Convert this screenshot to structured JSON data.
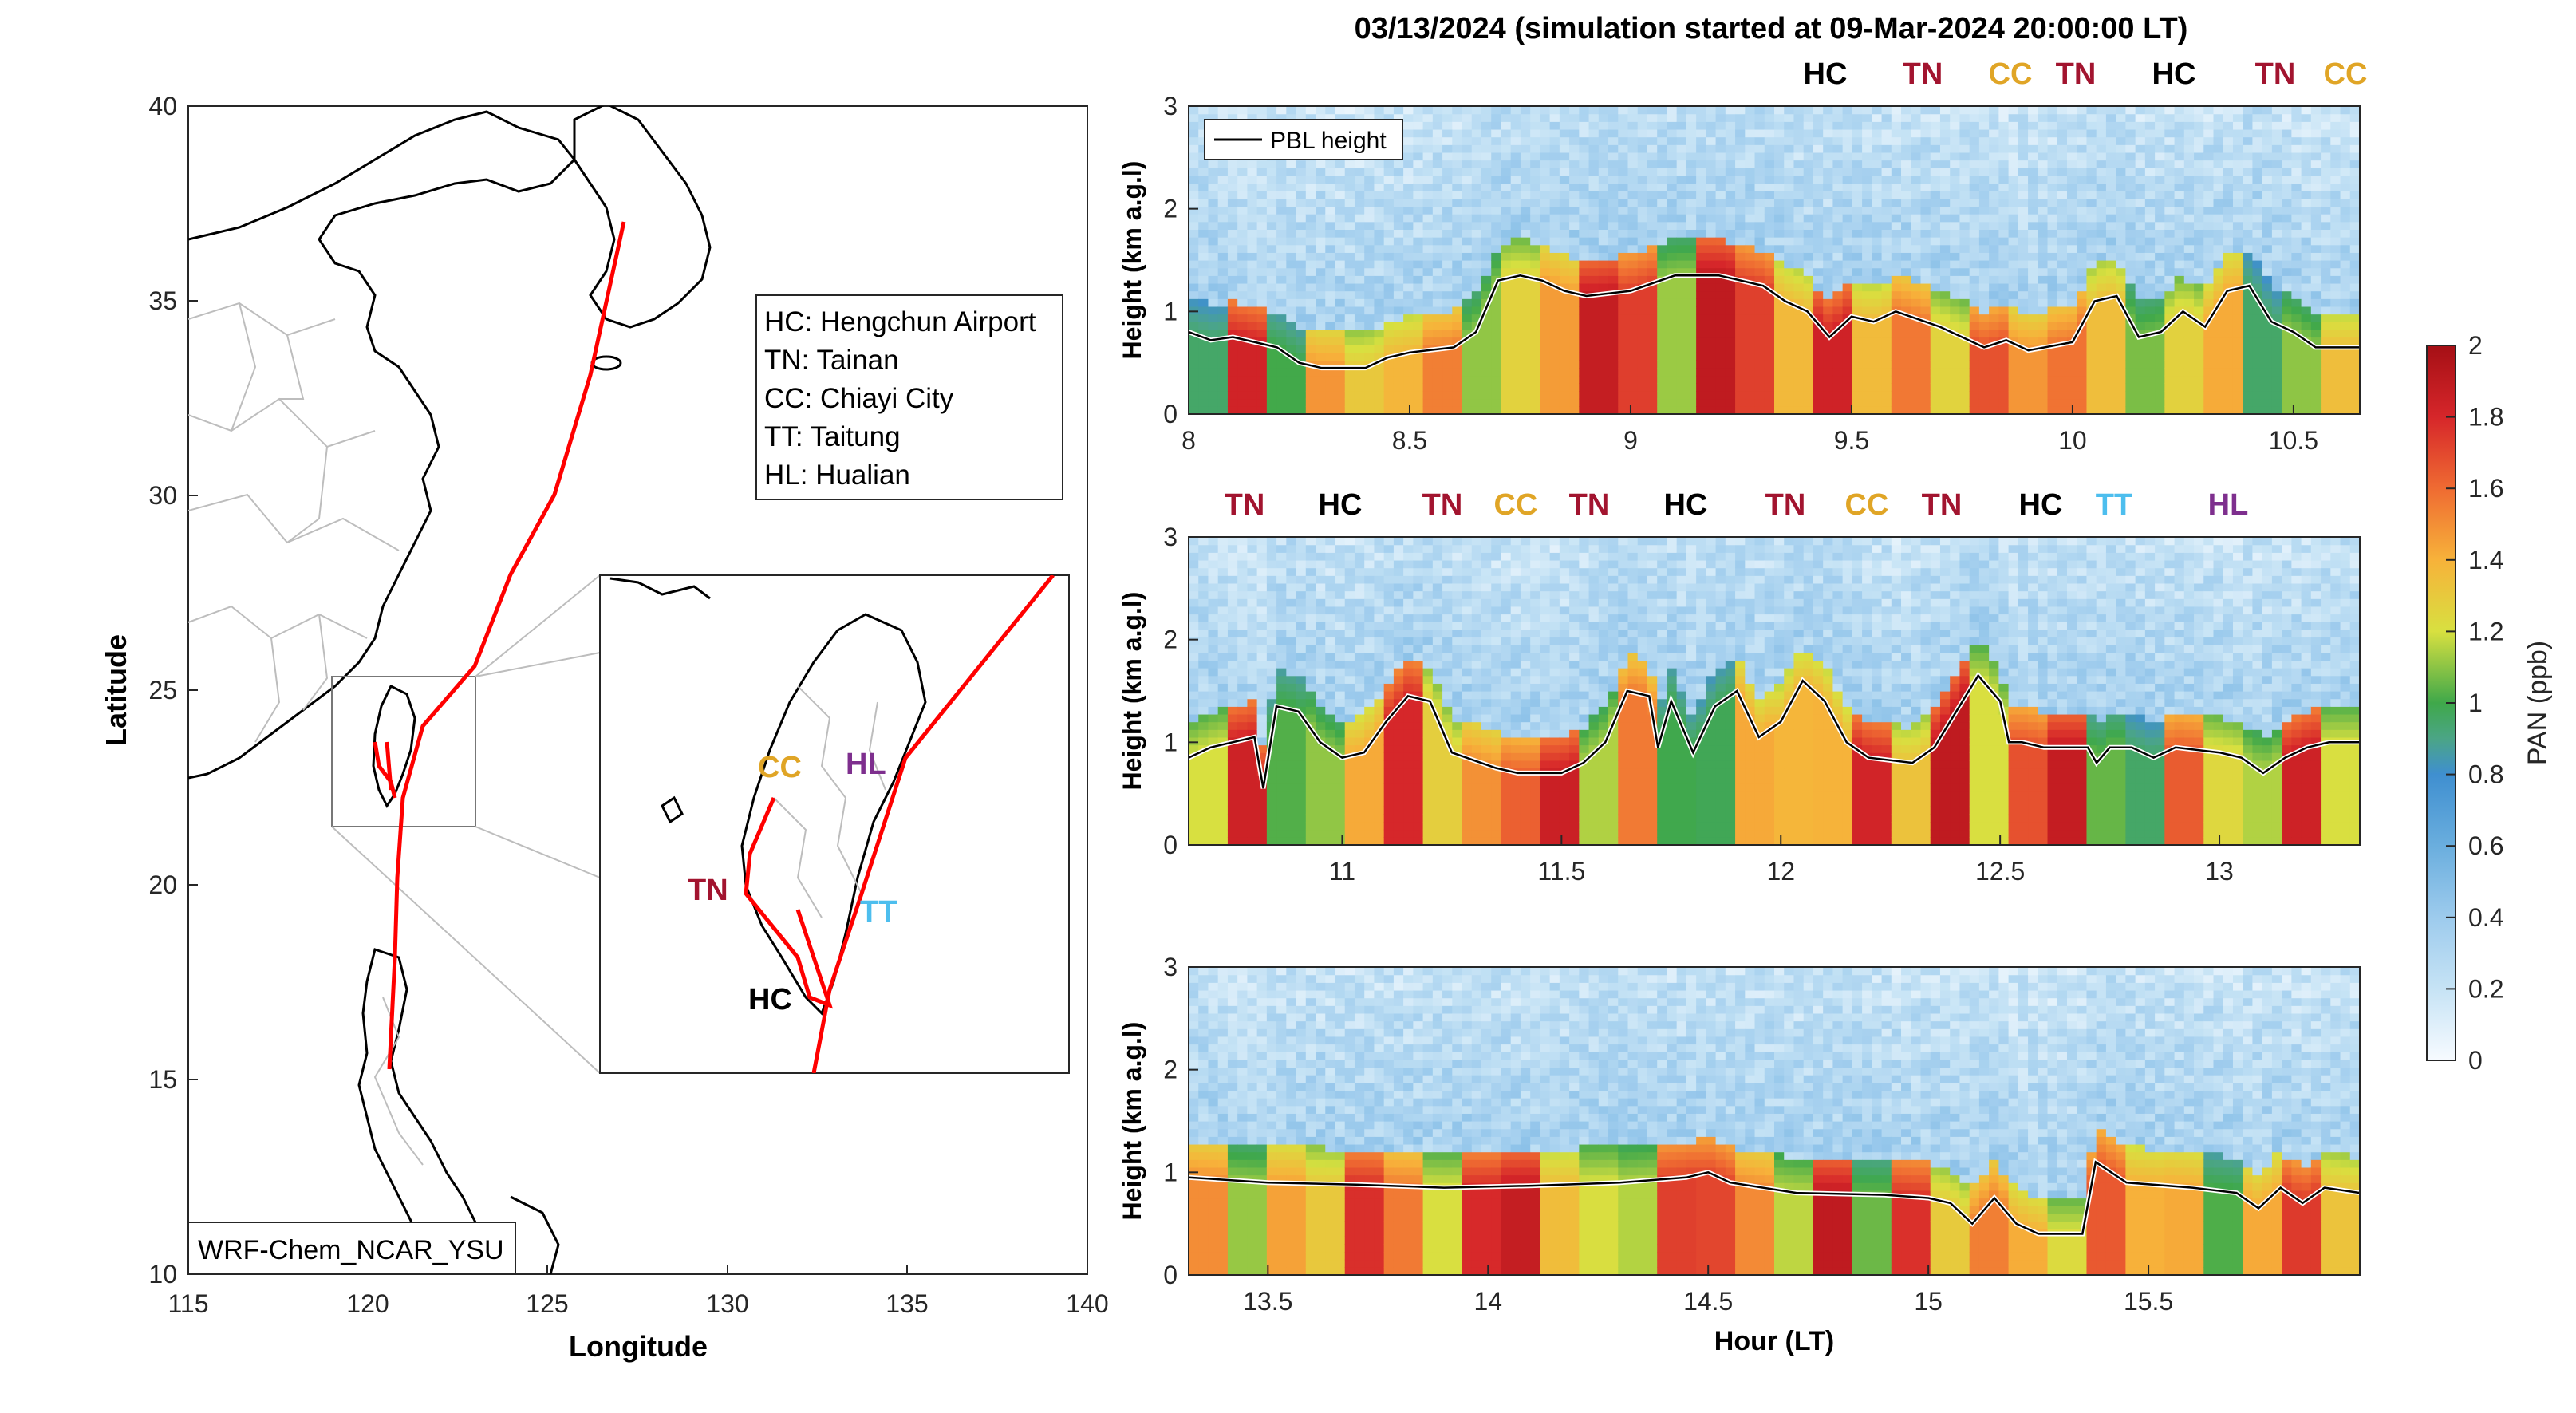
{
  "title": "03/13/2024 (simulation started at 09-Mar-2024 20:00:00 LT)",
  "map": {
    "xlabel": "Longitude",
    "ylabel": "Latitude",
    "xticks": [
      "115",
      "120",
      "125",
      "130",
      "135",
      "140"
    ],
    "yticks": [
      "10",
      "15",
      "20",
      "25",
      "30",
      "35",
      "40"
    ],
    "model_label": "WRF-Chem_NCAR_YSU",
    "legend": [
      "HC: Hengchun Airport",
      "TN: Tainan",
      "CC: Chiayi City",
      "TT: Taitung",
      "HL: Hualian"
    ],
    "inset_labels": [
      {
        "text": "CC",
        "color": "#e0a526"
      },
      {
        "text": "HL",
        "color": "#7e2f8e"
      },
      {
        "text": "TN",
        "color": "#a2142f"
      },
      {
        "text": "TT",
        "color": "#4dbeee"
      },
      {
        "text": "HC",
        "color": "#000000"
      }
    ],
    "track_color": "#ff0000"
  },
  "chart_data": {
    "type": "heatmap",
    "variable": "PAN (ppb)",
    "colorbar": {
      "label": "PAN (ppb)",
      "range": [
        0,
        2
      ],
      "ticks": [
        "0",
        "0.2",
        "0.4",
        "0.6",
        "0.8",
        "1",
        "1.2",
        "1.4",
        "1.6",
        "1.8",
        "2"
      ]
    },
    "xlabel": "Hour (LT)",
    "ylabel": "Height (km a.g.l)",
    "line_legend": "PBL height",
    "panels": [
      {
        "xlim": [
          8,
          10.65
        ],
        "ylim": [
          0,
          3
        ],
        "xticks": [
          "8",
          "8.5",
          "9",
          "9.5",
          "10",
          "10.5"
        ],
        "yticks": [
          "0",
          "1",
          "2",
          "3"
        ],
        "sites": [
          {
            "text": "HC",
            "color": "#000000"
          },
          {
            "text": "TN",
            "color": "#a2142f"
          },
          {
            "text": "CC",
            "color": "#e0a526"
          },
          {
            "text": "TN",
            "color": "#a2142f"
          },
          {
            "text": "HC",
            "color": "#000000"
          },
          {
            "text": "TN",
            "color": "#a2142f"
          },
          {
            "text": "CC",
            "color": "#e0a526"
          }
        ],
        "pbl_height": [
          [
            8.0,
            0.8
          ],
          [
            8.05,
            0.72
          ],
          [
            8.1,
            0.75
          ],
          [
            8.15,
            0.7
          ],
          [
            8.2,
            0.65
          ],
          [
            8.25,
            0.5
          ],
          [
            8.3,
            0.45
          ],
          [
            8.4,
            0.45
          ],
          [
            8.45,
            0.55
          ],
          [
            8.5,
            0.6
          ],
          [
            8.6,
            0.65
          ],
          [
            8.65,
            0.8
          ],
          [
            8.7,
            1.3
          ],
          [
            8.75,
            1.35
          ],
          [
            8.8,
            1.3
          ],
          [
            8.85,
            1.2
          ],
          [
            8.9,
            1.15
          ],
          [
            9.0,
            1.2
          ],
          [
            9.1,
            1.35
          ],
          [
            9.2,
            1.35
          ],
          [
            9.3,
            1.25
          ],
          [
            9.35,
            1.1
          ],
          [
            9.4,
            1.0
          ],
          [
            9.45,
            0.75
          ],
          [
            9.5,
            0.95
          ],
          [
            9.55,
            0.9
          ],
          [
            9.6,
            1.0
          ],
          [
            9.7,
            0.85
          ],
          [
            9.8,
            0.65
          ],
          [
            9.85,
            0.72
          ],
          [
            9.9,
            0.62
          ],
          [
            10.0,
            0.7
          ],
          [
            10.05,
            1.1
          ],
          [
            10.1,
            1.15
          ],
          [
            10.15,
            0.75
          ],
          [
            10.2,
            0.8
          ],
          [
            10.25,
            1.0
          ],
          [
            10.3,
            0.85
          ],
          [
            10.35,
            1.2
          ],
          [
            10.4,
            1.25
          ],
          [
            10.45,
            0.9
          ],
          [
            10.5,
            0.8
          ],
          [
            10.55,
            0.65
          ],
          [
            10.65,
            0.65
          ]
        ]
      },
      {
        "xlim": [
          10.65,
          13.32
        ],
        "ylim": [
          0,
          3
        ],
        "xticks": [
          "11",
          "11.5",
          "12",
          "12.5",
          "13"
        ],
        "yticks": [
          "0",
          "1",
          "2",
          "3"
        ],
        "sites": [
          {
            "text": "TN",
            "color": "#a2142f"
          },
          {
            "text": "HC",
            "color": "#000000"
          },
          {
            "text": "TN",
            "color": "#a2142f"
          },
          {
            "text": "CC",
            "color": "#e0a526"
          },
          {
            "text": "TN",
            "color": "#a2142f"
          },
          {
            "text": "HC",
            "color": "#000000"
          },
          {
            "text": "TN",
            "color": "#a2142f"
          },
          {
            "text": "CC",
            "color": "#e0a526"
          },
          {
            "text": "TN",
            "color": "#a2142f"
          },
          {
            "text": "HC",
            "color": "#000000"
          },
          {
            "text": "TT",
            "color": "#4dbeee"
          },
          {
            "text": "HL",
            "color": "#7e2f8e"
          }
        ],
        "pbl_height": [
          [
            10.65,
            0.85
          ],
          [
            10.7,
            0.95
          ],
          [
            10.75,
            1.0
          ],
          [
            10.8,
            1.05
          ],
          [
            10.82,
            0.55
          ],
          [
            10.85,
            1.35
          ],
          [
            10.9,
            1.3
          ],
          [
            10.95,
            1.0
          ],
          [
            11.0,
            0.85
          ],
          [
            11.05,
            0.9
          ],
          [
            11.1,
            1.2
          ],
          [
            11.15,
            1.45
          ],
          [
            11.2,
            1.4
          ],
          [
            11.25,
            0.9
          ],
          [
            11.35,
            0.75
          ],
          [
            11.4,
            0.7
          ],
          [
            11.5,
            0.7
          ],
          [
            11.55,
            0.8
          ],
          [
            11.6,
            1.0
          ],
          [
            11.65,
            1.5
          ],
          [
            11.7,
            1.45
          ],
          [
            11.72,
            0.95
          ],
          [
            11.75,
            1.4
          ],
          [
            11.8,
            0.9
          ],
          [
            11.85,
            1.35
          ],
          [
            11.9,
            1.5
          ],
          [
            11.95,
            1.05
          ],
          [
            12.0,
            1.2
          ],
          [
            12.05,
            1.6
          ],
          [
            12.1,
            1.4
          ],
          [
            12.15,
            1.0
          ],
          [
            12.2,
            0.85
          ],
          [
            12.3,
            0.8
          ],
          [
            12.35,
            0.95
          ],
          [
            12.4,
            1.3
          ],
          [
            12.45,
            1.65
          ],
          [
            12.5,
            1.4
          ],
          [
            12.52,
            1.0
          ],
          [
            12.55,
            1.0
          ],
          [
            12.6,
            0.95
          ],
          [
            12.7,
            0.95
          ],
          [
            12.72,
            0.8
          ],
          [
            12.75,
            0.95
          ],
          [
            12.8,
            0.95
          ],
          [
            12.85,
            0.85
          ],
          [
            12.9,
            0.95
          ],
          [
            13.0,
            0.9
          ],
          [
            13.05,
            0.85
          ],
          [
            13.1,
            0.7
          ],
          [
            13.15,
            0.85
          ],
          [
            13.2,
            0.95
          ],
          [
            13.25,
            1.0
          ],
          [
            13.32,
            1.0
          ]
        ]
      },
      {
        "xlim": [
          13.32,
          15.98
        ],
        "ylim": [
          0,
          3
        ],
        "xticks": [
          "13.5",
          "14",
          "14.5",
          "15",
          "15.5"
        ],
        "yticks": [
          "0",
          "1",
          "2",
          "3"
        ],
        "sites": [],
        "pbl_height": [
          [
            13.32,
            0.95
          ],
          [
            13.5,
            0.9
          ],
          [
            13.7,
            0.88
          ],
          [
            13.9,
            0.85
          ],
          [
            14.1,
            0.87
          ],
          [
            14.3,
            0.9
          ],
          [
            14.45,
            0.95
          ],
          [
            14.5,
            1.0
          ],
          [
            14.55,
            0.9
          ],
          [
            14.7,
            0.8
          ],
          [
            14.9,
            0.78
          ],
          [
            15.0,
            0.75
          ],
          [
            15.05,
            0.7
          ],
          [
            15.1,
            0.5
          ],
          [
            15.15,
            0.75
          ],
          [
            15.2,
            0.5
          ],
          [
            15.25,
            0.4
          ],
          [
            15.35,
            0.4
          ],
          [
            15.38,
            1.1
          ],
          [
            15.45,
            0.9
          ],
          [
            15.6,
            0.85
          ],
          [
            15.7,
            0.8
          ],
          [
            15.75,
            0.65
          ],
          [
            15.8,
            0.85
          ],
          [
            15.85,
            0.7
          ],
          [
            15.9,
            0.85
          ],
          [
            15.98,
            0.8
          ]
        ]
      }
    ]
  }
}
